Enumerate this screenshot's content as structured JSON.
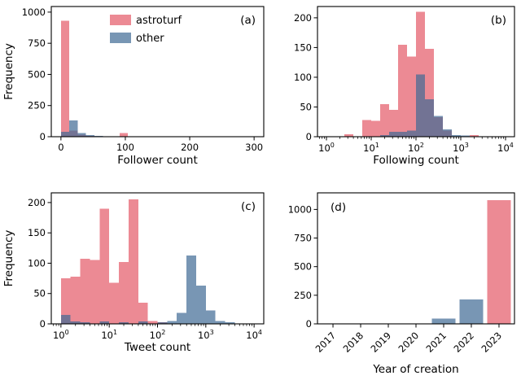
{
  "figure_title": "",
  "style": {
    "astroturf_color": "#e45966",
    "other_color": "#3e6994",
    "fill_alpha": 0.7,
    "axis_color": "#000000",
    "background": "#ffffff",
    "legend_entries": [
      {
        "label": "astroturf",
        "color_key": "astroturf_color"
      },
      {
        "label": "other",
        "color_key": "other_color"
      }
    ]
  },
  "chart_data": [
    {
      "id": "a",
      "type": "bar",
      "panel_label": "(a)",
      "panel_label_pos": "tr",
      "xlabel": "Follower count",
      "ylabel": "Frequency",
      "x_scale": "linear",
      "xlim": [
        -15,
        315
      ],
      "xticks": [
        0,
        100,
        200,
        300
      ],
      "ylim": [
        0,
        1045
      ],
      "yticks": [
        0,
        250,
        500,
        750,
        1000
      ],
      "legend": true,
      "series": [
        {
          "name": "astroturf",
          "bins": [
            [
              0,
              13,
              930
            ],
            [
              13,
              26,
              50
            ],
            [
              26,
              39,
              15
            ],
            [
              39,
              52,
              8
            ],
            [
              52,
              65,
              4
            ],
            [
              65,
              78,
              2
            ],
            [
              91,
              104,
              30
            ],
            [
              104,
              117,
              4
            ]
          ]
        },
        {
          "name": "other",
          "bins": [
            [
              0,
              13,
              40
            ],
            [
              13,
              26,
              130
            ],
            [
              26,
              39,
              30
            ],
            [
              39,
              52,
              12
            ],
            [
              52,
              65,
              5
            ],
            [
              65,
              78,
              2
            ]
          ]
        }
      ]
    },
    {
      "id": "b",
      "type": "bar",
      "panel_label": "(b)",
      "panel_label_pos": "tr",
      "xlabel": "Following count",
      "ylabel": "",
      "x_scale": "log",
      "xlim": [
        0.631,
        15849
      ],
      "xticks": [
        1,
        10,
        100,
        1000,
        10000
      ],
      "ylim": [
        0,
        219
      ],
      "yticks": [
        0,
        50,
        100,
        150,
        200
      ],
      "legend": false,
      "series": [
        {
          "name": "astroturf",
          "bins": [
            [
              2.51,
              3.98,
              4
            ],
            [
              6.31,
              10,
              28
            ],
            [
              10,
              15.8,
              27
            ],
            [
              15.8,
              25.1,
              55
            ],
            [
              25.1,
              39.8,
              45
            ],
            [
              39.8,
              63.1,
              155
            ],
            [
              63.1,
              100,
              135
            ],
            [
              100,
              158,
              210
            ],
            [
              158,
              251,
              148
            ],
            [
              251,
              398,
              33
            ],
            [
              398,
              631,
              10
            ],
            [
              1585,
              2512,
              3
            ]
          ]
        },
        {
          "name": "other",
          "bins": [
            [
              15.8,
              25.1,
              3
            ],
            [
              25.1,
              39.8,
              8
            ],
            [
              39.8,
              63.1,
              8
            ],
            [
              63.1,
              100,
              10
            ],
            [
              100,
              158,
              105
            ],
            [
              158,
              251,
              63
            ],
            [
              251,
              398,
              35
            ],
            [
              398,
              631,
              12
            ],
            [
              631,
              1000,
              3
            ],
            [
              1000,
              1585,
              2
            ]
          ]
        }
      ]
    },
    {
      "id": "c",
      "type": "bar",
      "panel_label": "(c)",
      "panel_label_pos": "tr",
      "xlabel": "Tweet count",
      "ylabel": "Frequency",
      "x_scale": "log",
      "xlim": [
        0.631,
        15849
      ],
      "xticks": [
        1,
        10,
        100,
        1000,
        10000
      ],
      "ylim": [
        0,
        216
      ],
      "yticks": [
        0,
        50,
        100,
        150,
        200
      ],
      "legend": false,
      "series": [
        {
          "name": "astroturf",
          "bins": [
            [
              1,
              1.58,
              75
            ],
            [
              1.58,
              2.51,
              78
            ],
            [
              2.51,
              3.98,
              107
            ],
            [
              3.98,
              6.31,
              105
            ],
            [
              6.31,
              10,
              190
            ],
            [
              10,
              15.8,
              68
            ],
            [
              15.8,
              25.1,
              102
            ],
            [
              25.1,
              39.8,
              205
            ],
            [
              39.8,
              63.1,
              35
            ],
            [
              63.1,
              100,
              5
            ],
            [
              100,
              158,
              3
            ]
          ]
        },
        {
          "name": "other",
          "bins": [
            [
              1,
              1.58,
              15
            ],
            [
              1.58,
              2.51,
              4
            ],
            [
              2.51,
              3.98,
              3
            ],
            [
              6.31,
              10,
              4
            ],
            [
              15.8,
              25.1,
              3
            ],
            [
              39.8,
              63.1,
              4
            ],
            [
              100,
              158,
              3
            ],
            [
              158,
              251,
              5
            ],
            [
              251,
              398,
              18
            ],
            [
              398,
              631,
              113
            ],
            [
              631,
              1000,
              63
            ],
            [
              1000,
              1585,
              22
            ],
            [
              1585,
              2512,
              5
            ],
            [
              2512,
              3981,
              3
            ]
          ]
        }
      ]
    },
    {
      "id": "d",
      "type": "bar",
      "panel_label": "(d)",
      "panel_label_pos": "tl",
      "xlabel": "Year of creation",
      "ylabel": "",
      "x_scale": "categorical",
      "categories": [
        "2017",
        "2018",
        "2019",
        "2020",
        "2021",
        "2022",
        "2023"
      ],
      "ylim": [
        0,
        1145
      ],
      "yticks": [
        0,
        250,
        500,
        750,
        1000
      ],
      "legend": false,
      "series": [
        {
          "name": "astroturf",
          "values": [
            0,
            0,
            0,
            0,
            0,
            0,
            1080
          ]
        },
        {
          "name": "other",
          "values": [
            0,
            0,
            0,
            0,
            45,
            215,
            0
          ]
        }
      ]
    }
  ]
}
